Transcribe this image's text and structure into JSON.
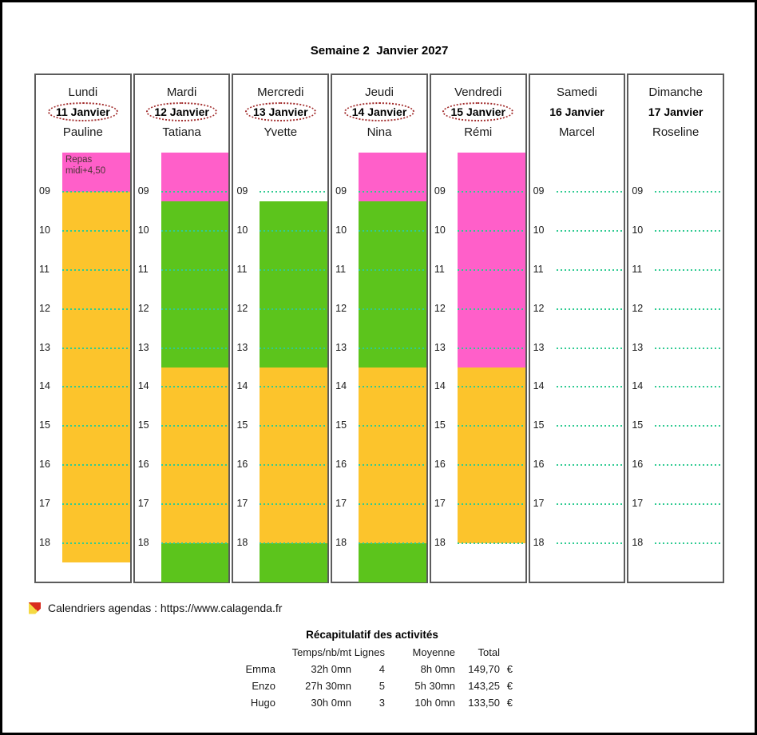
{
  "title": "Semaine 2  Janvier 2027",
  "colors": {
    "pink": "#ff5fc9",
    "yellow": "#fcc42c",
    "green": "#5cc41c",
    "dots": "#2fcb92",
    "ellipse": "#a12b2b",
    "event_text": "#4a3535",
    "column_border": "#5c5c5c"
  },
  "hours": [
    "09",
    "10",
    "11",
    "12",
    "13",
    "14",
    "15",
    "16",
    "17",
    "18"
  ],
  "days": [
    {
      "id": "lundi",
      "day": "Lundi",
      "date": "11 Janvier",
      "person": "Pauline",
      "date_circled": true,
      "blocks": [
        {
          "color": "pink",
          "start": 8,
          "end": 9,
          "label": "Repas midi+4,50"
        },
        {
          "color": "yellow",
          "start": 9,
          "end": 18.5,
          "label": ""
        }
      ]
    },
    {
      "id": "mardi",
      "day": "Mardi",
      "date": "12 Janvier",
      "person": "Tatiana",
      "date_circled": true,
      "blocks": [
        {
          "color": "pink",
          "start": 8,
          "end": 9.25,
          "label": ""
        },
        {
          "color": "green",
          "start": 9.25,
          "end": 13.5,
          "label": ""
        },
        {
          "color": "yellow",
          "start": 13.5,
          "end": 18,
          "label": ""
        },
        {
          "color": "green",
          "start": 18,
          "end": 19,
          "label": ""
        }
      ]
    },
    {
      "id": "mercredi",
      "day": "Mercredi",
      "date": "13 Janvier",
      "person": "Yvette",
      "date_circled": true,
      "blocks": [
        {
          "color": "green",
          "start": 9.25,
          "end": 13.5,
          "label": ""
        },
        {
          "color": "yellow",
          "start": 13.5,
          "end": 18,
          "label": ""
        },
        {
          "color": "green",
          "start": 18,
          "end": 19,
          "label": ""
        }
      ]
    },
    {
      "id": "jeudi",
      "day": "Jeudi",
      "date": "14 Janvier",
      "person": "Nina",
      "date_circled": true,
      "blocks": [
        {
          "color": "pink",
          "start": 8,
          "end": 9.25,
          "label": ""
        },
        {
          "color": "green",
          "start": 9.25,
          "end": 13.5,
          "label": ""
        },
        {
          "color": "yellow",
          "start": 13.5,
          "end": 18,
          "label": ""
        },
        {
          "color": "green",
          "start": 18,
          "end": 19,
          "label": ""
        }
      ]
    },
    {
      "id": "vendredi",
      "day": "Vendredi",
      "date": "15 Janvier",
      "person": "Rémi",
      "date_circled": true,
      "blocks": [
        {
          "color": "pink",
          "start": 8,
          "end": 13.5,
          "label": ""
        },
        {
          "color": "yellow",
          "start": 13.5,
          "end": 18,
          "label": ""
        }
      ]
    },
    {
      "id": "samedi",
      "day": "Samedi",
      "date": "16 Janvier",
      "person": "Marcel",
      "date_circled": false,
      "blocks": []
    },
    {
      "id": "dimanche",
      "day": "Dimanche",
      "date": "17 Janvier",
      "person": "Roseline",
      "date_circled": false,
      "blocks": []
    }
  ],
  "footer": {
    "link_text": "Calendriers agendas : https://www.calagenda.fr"
  },
  "summary": {
    "title": "Récapitulatif des activités",
    "columns": [
      "Temps/nb/mt",
      "Lignes",
      "Moyenne",
      "Total"
    ],
    "rows": [
      {
        "name": "Emma",
        "temps": "32h 0mn",
        "lignes": "4",
        "moyenne": "8h 0mn",
        "total": "149,70",
        "currency": "€"
      },
      {
        "name": "Enzo",
        "temps": "27h 30mn",
        "lignes": "5",
        "moyenne": "5h 30mn",
        "total": "143,25",
        "currency": "€"
      },
      {
        "name": "Hugo",
        "temps": "30h 0mn",
        "lignes": "3",
        "moyenne": "10h 0mn",
        "total": "133,50",
        "currency": "€"
      }
    ]
  }
}
